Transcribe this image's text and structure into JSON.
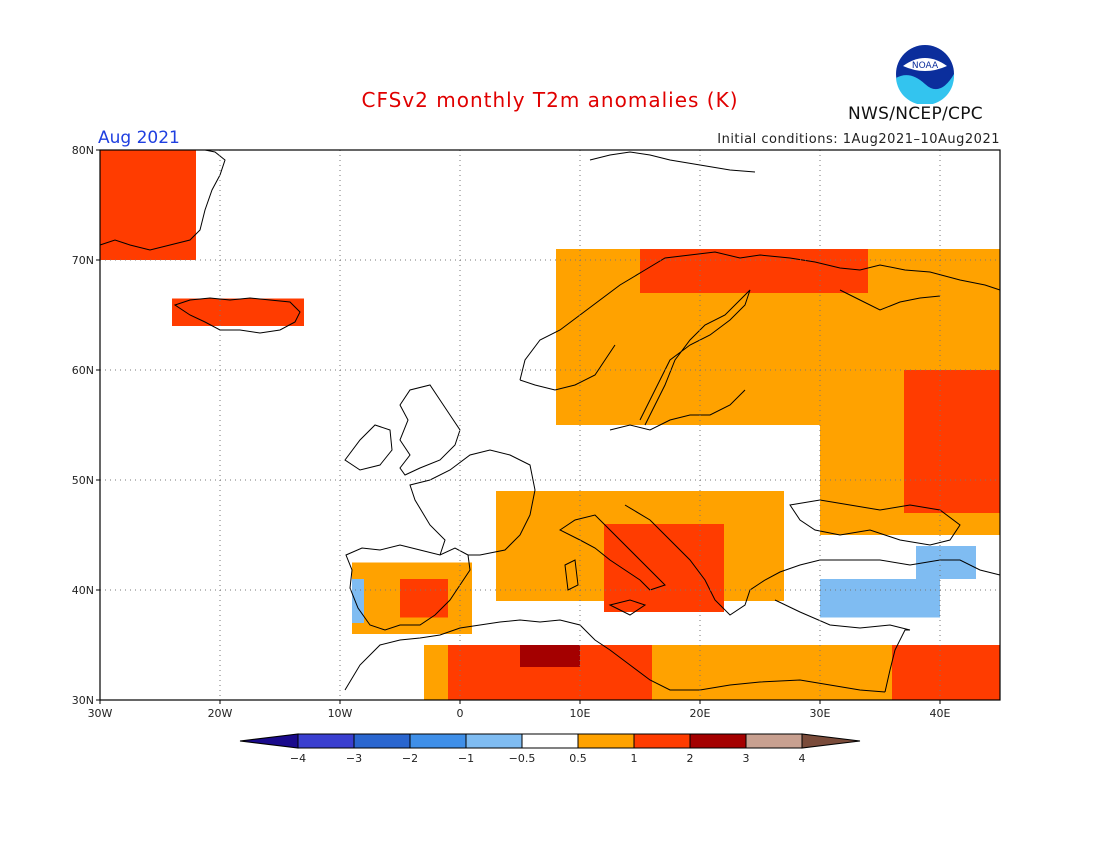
{
  "title": "CFSv2 monthly T2m anomalies (K)",
  "forecast_month": "Aug 2021",
  "initial_conditions": "Initial conditions: 1Aug2021–10Aug2021",
  "agency": "NWS/NCEP/CPC",
  "logo_text": "NOAA",
  "map": {
    "lon_min": -30,
    "lon_max": 45,
    "lat_min": 30,
    "lat_max": 80,
    "grid_step": 10,
    "lon_labels": [
      "30W",
      "20W",
      "10W",
      "0",
      "10E",
      "20E",
      "30E",
      "40E"
    ],
    "lat_labels": [
      "80N",
      "70N",
      "60N",
      "50N",
      "40N",
      "30N"
    ]
  },
  "colorbar": {
    "colors": [
      "#1a0a8c",
      "#3a3fd0",
      "#2a66cf",
      "#3f8fe8",
      "#7fbcf2",
      "#ffffff",
      "#ffa200",
      "#ff3c00",
      "#a40000",
      "#c8a090",
      "#7a4b3a"
    ],
    "labels": [
      "−4",
      "−3",
      "−2",
      "−1",
      "−0.5",
      "0.5",
      "1",
      "2",
      "3",
      "4"
    ]
  },
  "anomaly_regions": [
    {
      "level": 1,
      "lon": [
        -30,
        -22
      ],
      "lat": [
        70,
        80
      ],
      "color": "#ff3c00"
    },
    {
      "level": 1,
      "lon": [
        -24,
        -13
      ],
      "lat": [
        64,
        66.5
      ],
      "color": "#ff3c00"
    },
    {
      "level": 0.5,
      "lon": [
        8,
        45
      ],
      "lat": [
        55,
        71
      ],
      "color": "#ffa200"
    },
    {
      "level": 1,
      "lon": [
        15,
        34
      ],
      "lat": [
        67,
        71
      ],
      "color": "#ff3c00"
    },
    {
      "level": 0.5,
      "lon": [
        30,
        45
      ],
      "lat": [
        45,
        62
      ],
      "color": "#ffa200"
    },
    {
      "level": 1,
      "lon": [
        37,
        45
      ],
      "lat": [
        47,
        60
      ],
      "color": "#ff3c00"
    },
    {
      "level": 0.5,
      "lon": [
        3,
        27
      ],
      "lat": [
        39,
        49
      ],
      "color": "#ffa200"
    },
    {
      "level": 1,
      "lon": [
        12,
        22
      ],
      "lat": [
        38,
        46
      ],
      "color": "#ff3c00"
    },
    {
      "level": 0.5,
      "lon": [
        -9,
        1
      ],
      "lat": [
        36,
        42.5
      ],
      "color": "#ffa200"
    },
    {
      "level": 1,
      "lon": [
        -5,
        -1
      ],
      "lat": [
        37.5,
        41
      ],
      "color": "#ff3c00"
    },
    {
      "level": 0.5,
      "lon": [
        -3,
        45
      ],
      "lat": [
        30,
        35
      ],
      "color": "#ffa200"
    },
    {
      "level": 1,
      "lon": [
        -1,
        16
      ],
      "lat": [
        30,
        35
      ],
      "color": "#ff3c00"
    },
    {
      "level": 2,
      "lon": [
        5,
        10
      ],
      "lat": [
        33,
        35
      ],
      "color": "#a40000"
    },
    {
      "level": 1,
      "lon": [
        36,
        45
      ],
      "lat": [
        30,
        35
      ],
      "color": "#ff3c00"
    },
    {
      "level": -0.5,
      "lon": [
        30,
        40
      ],
      "lat": [
        37.5,
        41
      ],
      "color": "#7fbcf2"
    },
    {
      "level": -0.5,
      "lon": [
        38,
        43
      ],
      "lat": [
        41,
        44
      ],
      "color": "#7fbcf2"
    },
    {
      "level": -0.5,
      "lon": [
        -9,
        -8
      ],
      "lat": [
        37,
        41
      ],
      "color": "#7fbcf2"
    }
  ]
}
